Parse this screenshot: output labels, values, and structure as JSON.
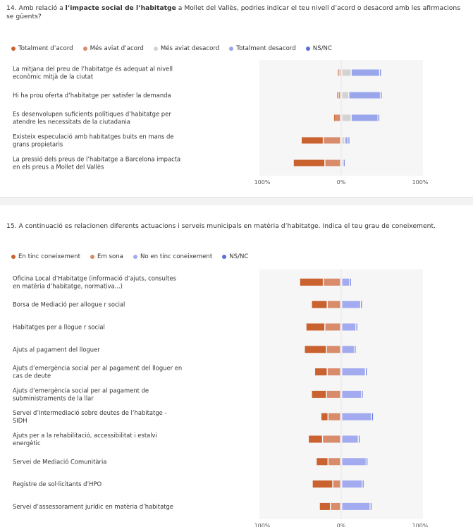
{
  "chart_data": [
    {
      "type": "bar",
      "stacked": "diverging",
      "title_prefix": "14. Amb relació a ",
      "title_bold": "l’impacte social de l’habitatge",
      "title_suffix": " a Mollet del Vallès, podries indicar el teu nivell d’acord o desacord amb les afirmacions se güents?",
      "series": [
        {
          "name": "Totalment d’acord",
          "color": "#c9622f",
          "side": "left",
          "values": [
            2,
            2,
            1,
            28,
            40
          ]
        },
        {
          "name": "Més aviat d’acord",
          "color": "#d88c6c",
          "side": "left",
          "values": [
            2,
            3,
            8,
            22,
            20
          ]
        },
        {
          "name": "Més aviat desacord",
          "color": "#d3d3d3",
          "side": "right",
          "values": [
            12,
            9,
            12,
            4,
            2
          ]
        },
        {
          "name": "Totalment desacord",
          "color": "#9aa6ec",
          "side": "right",
          "values": [
            36,
            40,
            34,
            4,
            0
          ]
        },
        {
          "name": "NS/NC",
          "color": "#5b6ee0",
          "side": "right",
          "values": [
            1,
            1,
            1,
            2,
            1
          ]
        }
      ],
      "categories": [
        "La mitjana del preu de l’habitatge és adequat al nivell econòmic mitjà de la ciutat",
        "Hi ha prou oferta d’habitatge per satisfer la demanda",
        "Es desenvolupen suficients polítiques d’habitatge per atendre les necessitats de la ciutadania",
        "Existeix especulació amb habitatges buits en mans de grans propietaris",
        "La pressió dels preus de l’habitatge a Barcelona impacta en els preus a Mollet del Vallès"
      ],
      "xlim": [
        -100,
        100
      ],
      "ticks": [
        "100%",
        "0%",
        "100%"
      ]
    },
    {
      "type": "bar",
      "stacked": "diverging",
      "title": "15. A continuació es relacionen diferents actuacions i serveis municipals en matèria d’habitatge. Indica el teu grau de coneixement.",
      "series": [
        {
          "name": "En tinc coneixement",
          "color": "#c9622f",
          "side": "left",
          "values": [
            30,
            20,
            24,
            28,
            16,
            19,
            9,
            18,
            15,
            26,
            14
          ]
        },
        {
          "name": "Em sona",
          "color": "#d88c6c",
          "side": "left",
          "values": [
            22,
            17,
            20,
            18,
            17,
            18,
            16,
            23,
            16,
            10,
            13
          ]
        },
        {
          "name": "No en tinc coneixement",
          "color": "#a3abf0",
          "side": "right",
          "values": [
            10,
            24,
            18,
            16,
            30,
            25,
            38,
            21,
            31,
            26,
            36
          ]
        },
        {
          "name": "NS/NC",
          "color": "#5b6ee0",
          "side": "right",
          "values": [
            1,
            1,
            1,
            1,
            1,
            1,
            1,
            1,
            1,
            1,
            1
          ]
        }
      ],
      "categories": [
        "Oficina Local d’Habitatge (informació d’ajuts, consultes en matèria d’habitatge, normativa...)",
        "Borsa de Mediació per allogue r social",
        "Habitatges per a llogue r social",
        "Ajuts al pagament del lloguer",
        "Ajuts d’emergència social per al pagament del lloguer en cas de deute",
        "Ajuts d’emergència social per al pagament de subministraments de la llar",
        "Servei d’Intermediació sobre deutes de l’habitatge - SIDH",
        "Ajuts per a la rehabilitació, accessibilitat i estalvi energètic",
        "Servei de Mediació Comunitària",
        "Registre de sol·licitants d’HPO",
        "Servei d’assessorament jurídic en matèria d’habitatge"
      ],
      "xlim": [
        -100,
        100
      ],
      "ticks": [
        "100%",
        "0%",
        "100%"
      ]
    }
  ]
}
